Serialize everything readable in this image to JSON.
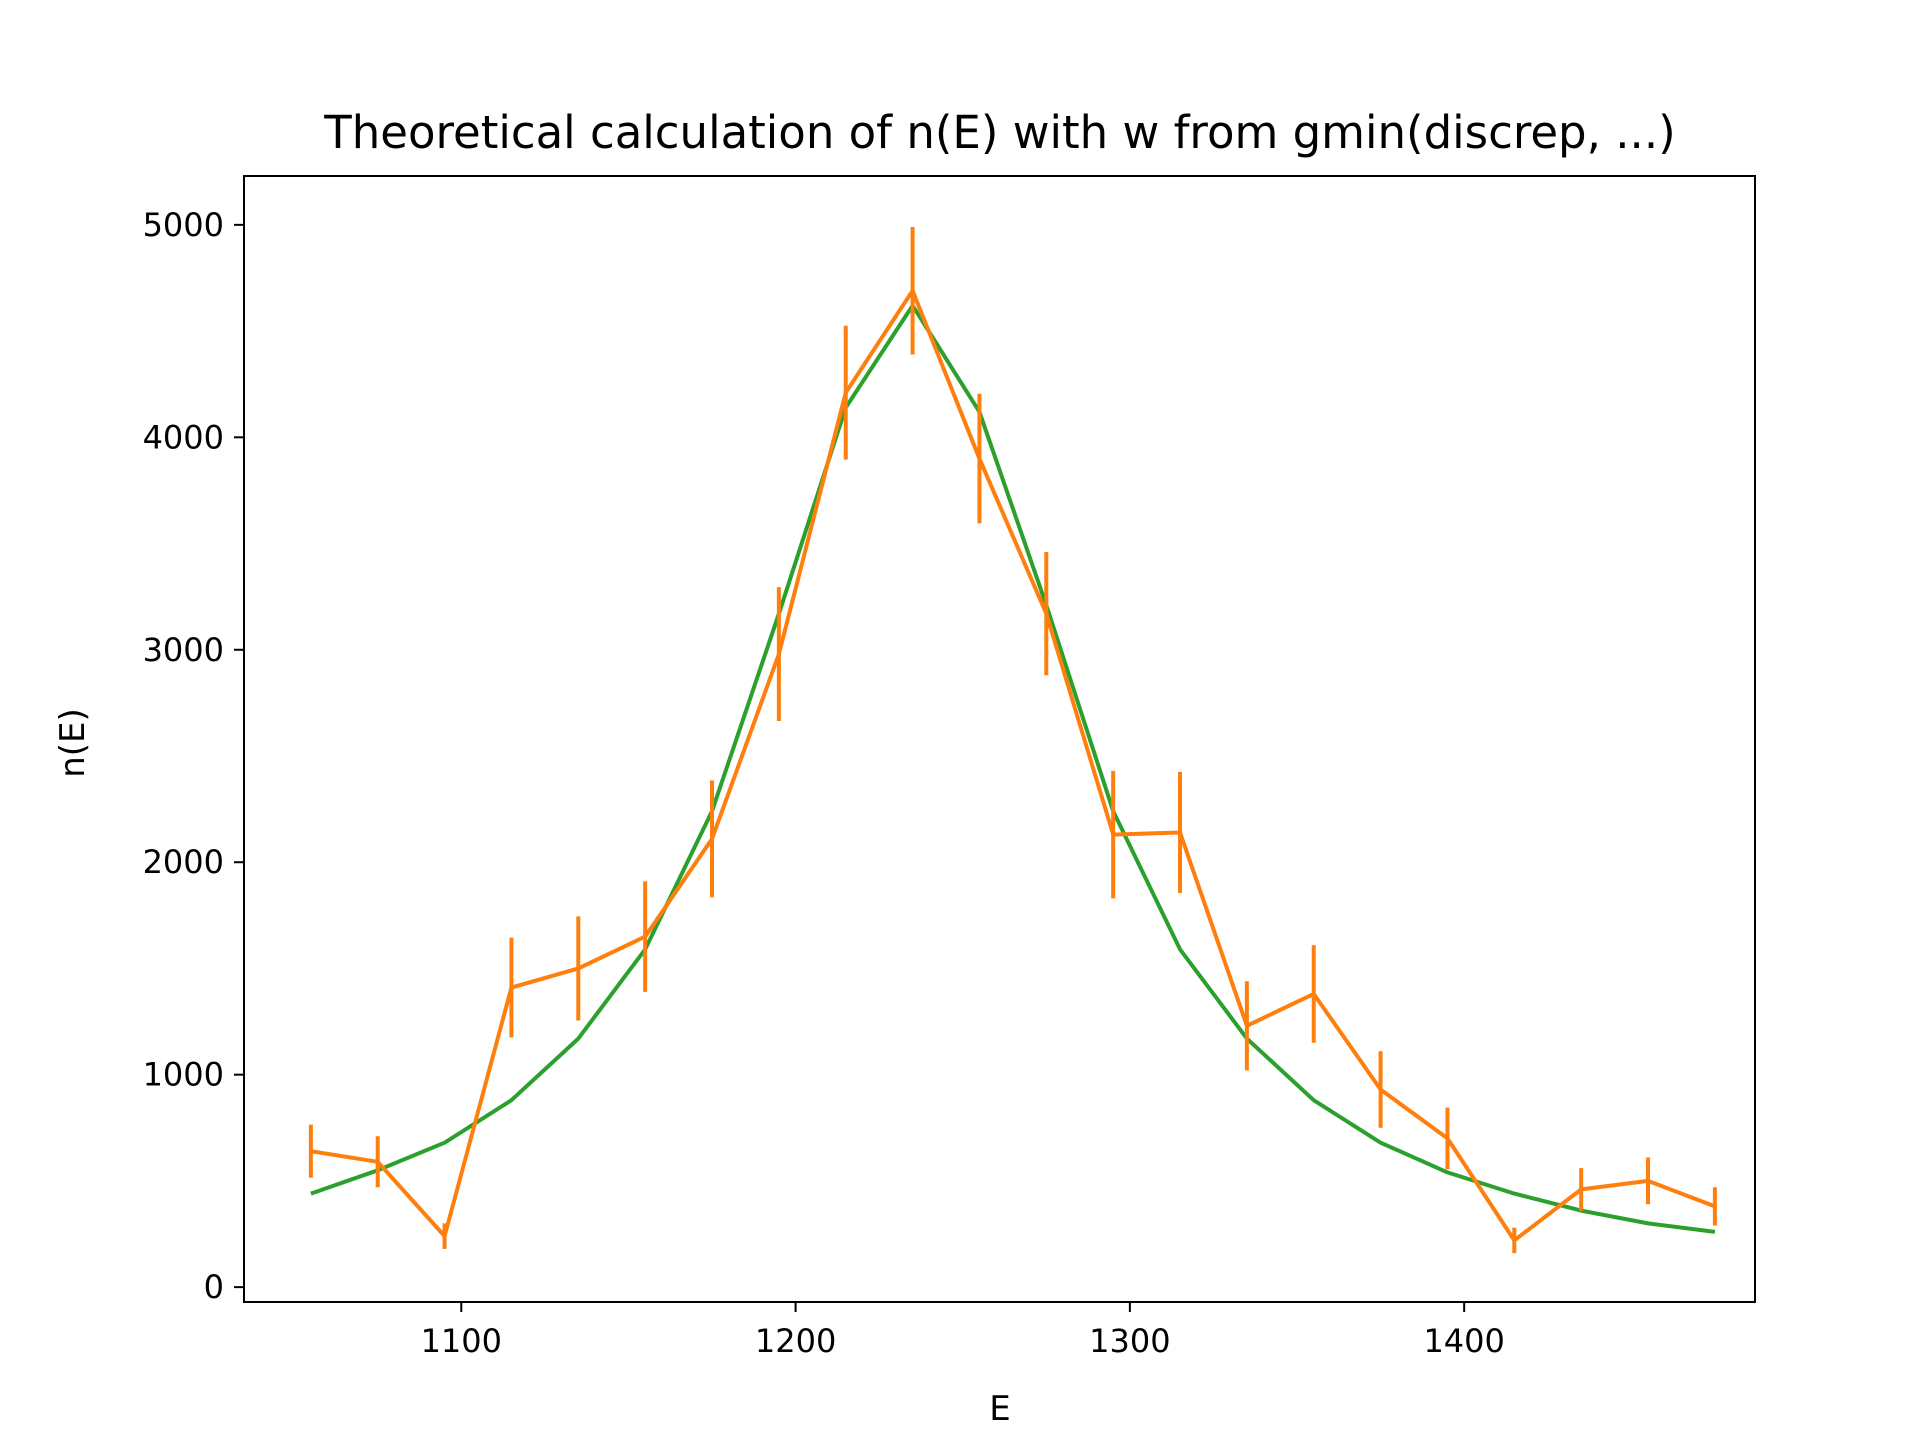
{
  "chart_data": {
    "type": "line",
    "title": "Theoretical calculation of n(E) with w from gmin(discrep, ...)",
    "xlabel": "E",
    "ylabel": "n(E)",
    "xlim": [
      1035,
      1487
    ],
    "ylim": [
      -70,
      5230
    ],
    "xticks": [
      1100,
      1200,
      1300,
      1400
    ],
    "yticks": [
      0,
      1000,
      2000,
      3000,
      4000,
      5000
    ],
    "grid": false,
    "series": [
      {
        "color": "#2ca02c",
        "style": "line",
        "x": [
          1055,
          1075,
          1095,
          1115,
          1135,
          1155,
          1175,
          1195,
          1215,
          1235,
          1255,
          1275,
          1295,
          1315,
          1335,
          1355,
          1375,
          1395,
          1415,
          1435,
          1455,
          1475
        ],
        "y": [
          440,
          550,
          680,
          880,
          1170,
          1590,
          2240,
          3170,
          4140,
          4620,
          4120,
          3210,
          2240,
          1590,
          1170,
          880,
          680,
          540,
          440,
          360,
          300,
          260
        ]
      },
      {
        "color": "#ff7f0e",
        "style": "errorbar",
        "x": [
          1055,
          1075,
          1095,
          1115,
          1135,
          1155,
          1175,
          1195,
          1215,
          1235,
          1255,
          1275,
          1295,
          1315,
          1335,
          1355,
          1375,
          1395,
          1415,
          1435,
          1455,
          1475
        ],
        "y": [
          640,
          590,
          240,
          1410,
          1500,
          1650,
          2110,
          2980,
          4210,
          4690,
          3900,
          3170,
          2130,
          2140,
          1230,
          1380,
          930,
          700,
          220,
          460,
          500,
          380
        ],
        "yerr": [
          125,
          120,
          60,
          235,
          245,
          260,
          275,
          315,
          315,
          300,
          305,
          290,
          300,
          285,
          210,
          230,
          180,
          145,
          60,
          100,
          110,
          90
        ]
      }
    ]
  }
}
